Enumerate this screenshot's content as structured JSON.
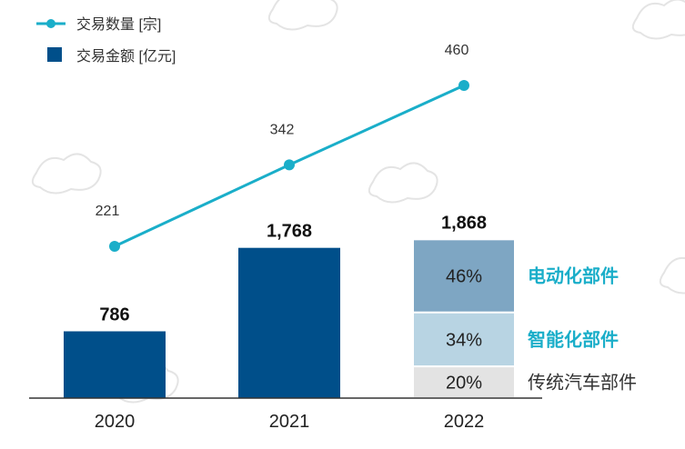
{
  "chart_data": {
    "type": "bar",
    "categories": [
      "2020",
      "2021",
      "2022"
    ],
    "series": [
      {
        "name": "交易金额 [亿元]",
        "type": "bar",
        "values": [
          786,
          1768,
          1868
        ],
        "labels": [
          "786",
          "1,768",
          "1,868"
        ]
      },
      {
        "name": "交易数量 [宗]",
        "type": "line",
        "values": [
          221,
          342,
          460
        ],
        "labels": [
          "221",
          "342",
          "460"
        ]
      }
    ],
    "breakdown_2022": [
      {
        "name": "电动化部件",
        "percent": 46,
        "label": "46%"
      },
      {
        "name": "智能化部件",
        "percent": 34,
        "label": "34%"
      },
      {
        "name": "传统汽车部件",
        "percent": 20,
        "label": "20%"
      }
    ],
    "legend": {
      "position": "top-left"
    },
    "grid": false
  },
  "colors": {
    "bar": "#004f8a",
    "line": "#1aaec9",
    "seg_electric": "#7ea6c3",
    "seg_intelligent": "#b8d4e3",
    "seg_traditional": "#e3e3e3",
    "accent_text": "#1aaec9",
    "axis": "#333333"
  }
}
